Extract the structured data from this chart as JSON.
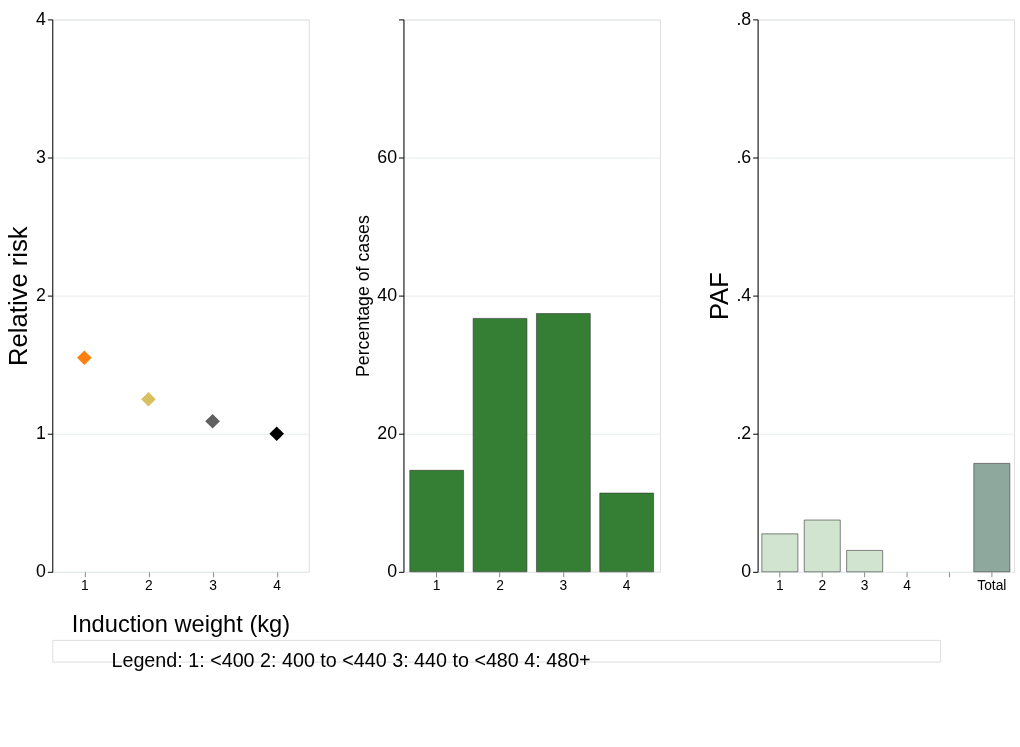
{
  "chart_data": [
    {
      "type": "scatter",
      "ylabel": "Relative risk",
      "xlabel": "Induction weight (kg)",
      "categories": [
        "1",
        "2",
        "3",
        "4"
      ],
      "values": [
        1.55,
        1.25,
        1.09,
        1.0
      ],
      "colors": [
        "#ff7f0e",
        "#d8c060",
        "#606060",
        "#000000"
      ],
      "marker": "diamond",
      "ylim": [
        0,
        4
      ],
      "yticks": [
        0,
        1,
        2,
        3,
        4
      ],
      "grid": "y",
      "annotations": [
        "Legend: 1: <400  2: 400 to <440  3: 440 to <480  4: 480+"
      ]
    },
    {
      "type": "bar",
      "ylabel": "Percentage of cases",
      "categories": [
        "1",
        "2",
        "3",
        "4"
      ],
      "values": [
        14.7,
        36.7,
        37.4,
        11.4
      ],
      "colors": [
        "#347f34",
        "#347f34",
        "#347f34",
        "#347f34"
      ],
      "ylim": [
        0,
        80
      ],
      "yticks": [
        0,
        20,
        40,
        60,
        {
          "value": 80,
          "label": null
        }
      ],
      "grid": "y"
    },
    {
      "type": "bar",
      "ylabel": "PAF",
      "categories": [
        "1",
        "2",
        "3",
        "4",
        null,
        "Total"
      ],
      "values": [
        0.055,
        0.075,
        0.031,
        null,
        null,
        0.157
      ],
      "colors": [
        "#d0e4d0",
        "#d0e4d0",
        "#d0e4d0",
        "#d0e4d0",
        "#d0e4d0",
        "#8fa89e"
      ],
      "ylim": [
        0,
        0.8
      ],
      "yticks": [
        0,
        {
          "value": 0.2,
          "label": ".2"
        },
        {
          "value": 0.4,
          "label": ".4"
        },
        {
          "value": 0.6,
          "label": ".6"
        },
        {
          "value": 0.8,
          "label": ".8"
        }
      ],
      "grid": "y"
    }
  ]
}
